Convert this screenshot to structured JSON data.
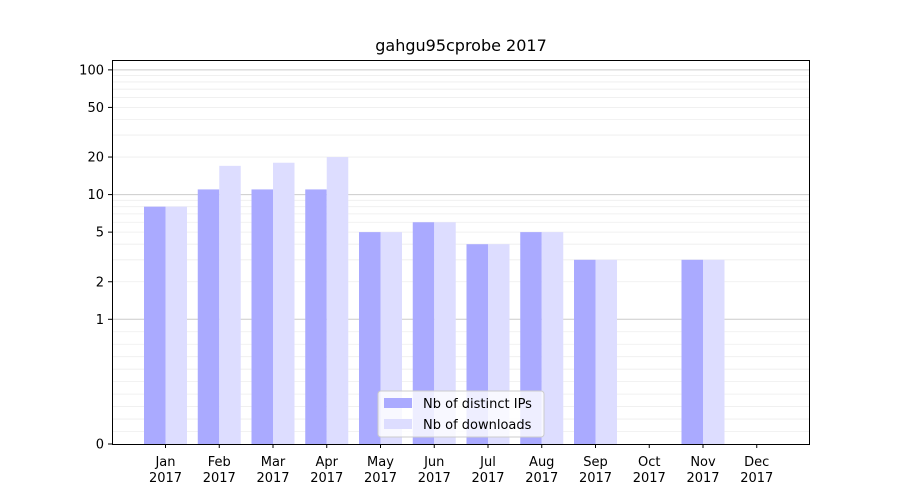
{
  "chart_data": {
    "type": "bar",
    "title": "gahgu95cprobe 2017",
    "xlabel": "",
    "ylabel": "",
    "categories": [
      {
        "month": "Jan",
        "year": "2017"
      },
      {
        "month": "Feb",
        "year": "2017"
      },
      {
        "month": "Mar",
        "year": "2017"
      },
      {
        "month": "Apr",
        "year": "2017"
      },
      {
        "month": "May",
        "year": "2017"
      },
      {
        "month": "Jun",
        "year": "2017"
      },
      {
        "month": "Jul",
        "year": "2017"
      },
      {
        "month": "Aug",
        "year": "2017"
      },
      {
        "month": "Sep",
        "year": "2017"
      },
      {
        "month": "Oct",
        "year": "2017"
      },
      {
        "month": "Nov",
        "year": "2017"
      },
      {
        "month": "Dec",
        "year": "2017"
      }
    ],
    "series": [
      {
        "name": "Nb of distinct IPs",
        "values": [
          8,
          11,
          11,
          11,
          5,
          6,
          4,
          5,
          3,
          0,
          3,
          0
        ],
        "color": "#aaaaff"
      },
      {
        "name": "Nb of downloads",
        "values": [
          8,
          17,
          18,
          20,
          5,
          6,
          4,
          5,
          3,
          0,
          3,
          0
        ],
        "color": "#ddddff"
      }
    ],
    "y_scale": "symlog",
    "y_ticks": [
      0,
      1,
      2,
      5,
      10,
      20,
      50,
      100
    ],
    "y_tick_labels": [
      "0",
      "1",
      "2",
      "5",
      "10",
      "20",
      "50",
      "100"
    ],
    "ylim": [
      0,
      120
    ],
    "grid": "horizontal",
    "legend_position": "bottom-center"
  }
}
